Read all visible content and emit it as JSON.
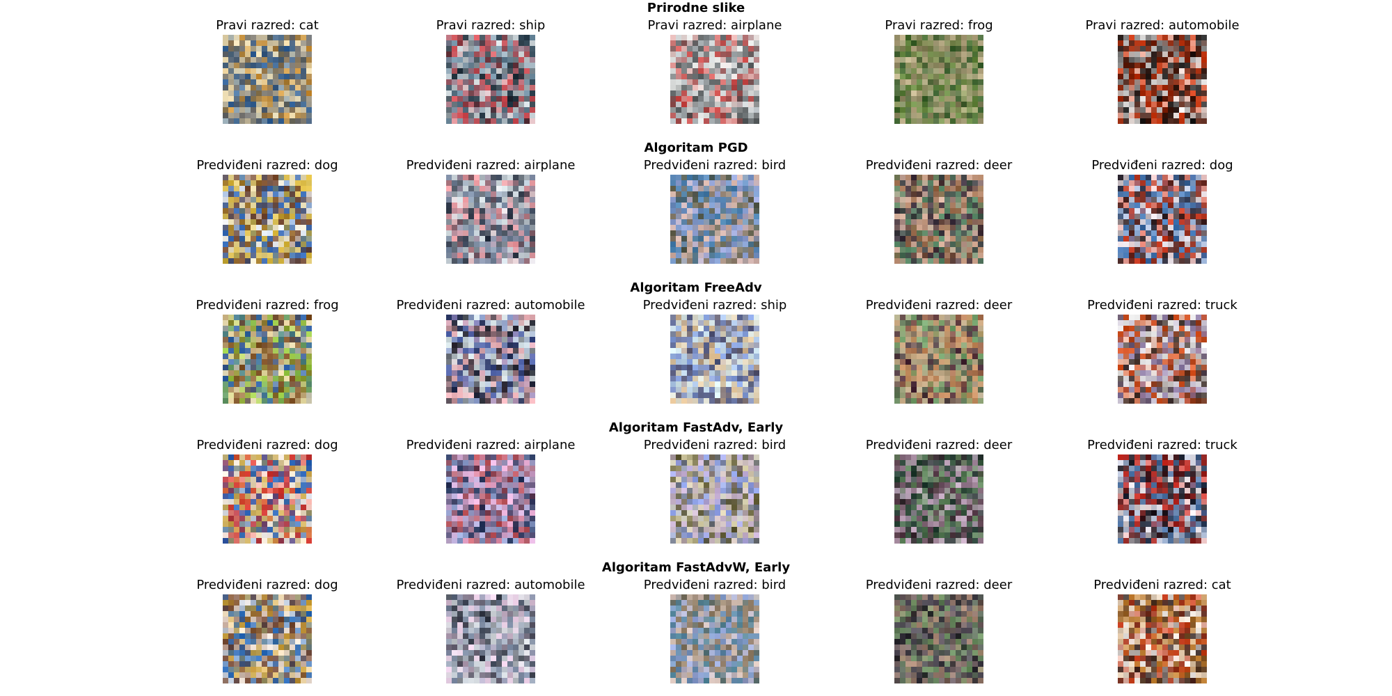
{
  "figure": {
    "sections": [
      {
        "title": "Prirodne slike",
        "items": [
          {
            "caption": "Pravi razred: cat",
            "image_icon": "cat-photo-icon",
            "palette": [
              "#c78a2e",
              "#6f6f6f",
              "#2d5f98",
              "#f1e0b4"
            ]
          },
          {
            "caption": "Pravi razred: ship",
            "image_icon": "ship-photo-icon",
            "palette": [
              "#d9e0e3",
              "#6c8ba0",
              "#1f2f3a",
              "#d34d53"
            ]
          },
          {
            "caption": "Pravi razred: airplane",
            "image_icon": "airplane-photo-icon",
            "palette": [
              "#b6bec2",
              "#e6e7e5",
              "#565b5d",
              "#d14c4a"
            ]
          },
          {
            "caption": "Pravi razred: frog",
            "image_icon": "frog-photo-icon",
            "palette": [
              "#365d2c",
              "#8d8561",
              "#c4b48f",
              "#6b8d45"
            ]
          },
          {
            "caption": "Pravi razred: automobile",
            "image_icon": "automobile-photo-icon",
            "palette": [
              "#ce3a13",
              "#e9e7e6",
              "#4d2318",
              "#1c1c1c"
            ]
          }
        ]
      },
      {
        "title": "Algoritam PGD",
        "items": [
          {
            "caption": "Predviđeni razred: dog",
            "image_icon": "adversarial-dog-icon",
            "palette": [
              "#d8b63a",
              "#7a4b2f",
              "#f2f2f2",
              "#2f67b8"
            ]
          },
          {
            "caption": "Predviđeni razred: airplane",
            "image_icon": "adversarial-airplane-icon",
            "palette": [
              "#dce6ea",
              "#7d8fa8",
              "#2b3444",
              "#ef9aa0"
            ]
          },
          {
            "caption": "Predviđeni razred: bird",
            "image_icon": "adversarial-bird-icon",
            "palette": [
              "#d8b5aa",
              "#9ca6d9",
              "#5b5d49",
              "#4a82b0"
            ]
          },
          {
            "caption": "Predviđeni razred: deer",
            "image_icon": "adversarial-deer-icon",
            "palette": [
              "#3b2e3c",
              "#d7b2a0",
              "#5a8c69",
              "#9d6d4d"
            ]
          },
          {
            "caption": "Predviđeni razred: dog",
            "image_icon": "adversarial-dog-icon-2",
            "palette": [
              "#cf3d23",
              "#f1e9ef",
              "#3b2a2c",
              "#3f76b6"
            ]
          }
        ]
      },
      {
        "title": "Algoritam FreeAdv",
        "items": [
          {
            "caption": "Predviđeni razred: frog",
            "image_icon": "adversarial-frog-icon",
            "palette": [
              "#9acd45",
              "#7f4f23",
              "#2f62ad",
              "#e8d7a6"
            ]
          },
          {
            "caption": "Predviđeni razred: automobile",
            "image_icon": "adversarial-automobile-icon",
            "palette": [
              "#f2b6bc",
              "#4b5fa8",
              "#20222d",
              "#d8e5e8"
            ]
          },
          {
            "caption": "Predviđeni razred: ship",
            "image_icon": "adversarial-ship-icon",
            "palette": [
              "#8aa6e6",
              "#e2c092",
              "#4d4f70",
              "#d8eef5"
            ]
          },
          {
            "caption": "Predviđeni razred: deer",
            "image_icon": "adversarial-deer-icon-2",
            "palette": [
              "#4a2a3a",
              "#c98d5f",
              "#76a56f",
              "#b7aa8a"
            ]
          },
          {
            "caption": "Predviđeni razred: truck",
            "image_icon": "adversarial-truck-icon",
            "palette": [
              "#d8501d",
              "#f0f0f0",
              "#40332d",
              "#8c7aa4"
            ]
          }
        ]
      },
      {
        "title": "Algoritam FastAdv, Early",
        "items": [
          {
            "caption": "Predviđeni razred: dog",
            "image_icon": "adversarial-dog-icon-3",
            "palette": [
              "#d8382f",
              "#c8a74c",
              "#2b68bd",
              "#f3ebe3"
            ]
          },
          {
            "caption": "Predviđeni razred: airplane",
            "image_icon": "adversarial-airplane-icon-2",
            "palette": [
              "#f3b7df",
              "#96a8d7",
              "#24345a",
              "#bd4f54"
            ]
          },
          {
            "caption": "Predviđeni razred: bird",
            "image_icon": "adversarial-bird-icon-2",
            "palette": [
              "#8fa2ea",
              "#d7cfa6",
              "#5f5a34",
              "#c7b0d7"
            ]
          },
          {
            "caption": "Predviđeni razred: deer",
            "image_icon": "adversarial-deer-icon-3",
            "palette": [
              "#274036",
              "#c2a7bf",
              "#678c63",
              "#4a2f3b"
            ]
          },
          {
            "caption": "Predviđeni razred: truck",
            "image_icon": "adversarial-truck-icon-2",
            "palette": [
              "#cc2e25",
              "#efe7ea",
              "#1f1e27",
              "#466fa3"
            ]
          }
        ]
      },
      {
        "title": "Algoritam FastAdvW, Early",
        "items": [
          {
            "caption": "Predviđeni razred: dog",
            "image_icon": "adversarial-dog-icon-4",
            "palette": [
              "#d2a53b",
              "#774c39",
              "#2d6fbf",
              "#f1e6dc"
            ]
          },
          {
            "caption": "Predviđeni razred: automobile",
            "image_icon": "adversarial-automobile-icon-2",
            "palette": [
              "#eed0e8",
              "#7f8ea7",
              "#2e3441",
              "#d3d8dc"
            ]
          },
          {
            "caption": "Predviđeni razred: bird",
            "image_icon": "adversarial-bird-icon-3",
            "palette": [
              "#d8c3bb",
              "#95a6da",
              "#8d7a61",
              "#4a7e93"
            ]
          },
          {
            "caption": "Predviđeni razred: deer",
            "image_icon": "adversarial-deer-icon-4",
            "palette": [
              "#5a5360",
              "#b08d79",
              "#6f9364",
              "#2c2b31"
            ]
          },
          {
            "caption": "Predviđeni razred: cat",
            "image_icon": "adversarial-cat-icon",
            "palette": [
              "#c83c1b",
              "#f0ece8",
              "#3d2d2a",
              "#bd7b2d"
            ]
          }
        ]
      }
    ]
  }
}
